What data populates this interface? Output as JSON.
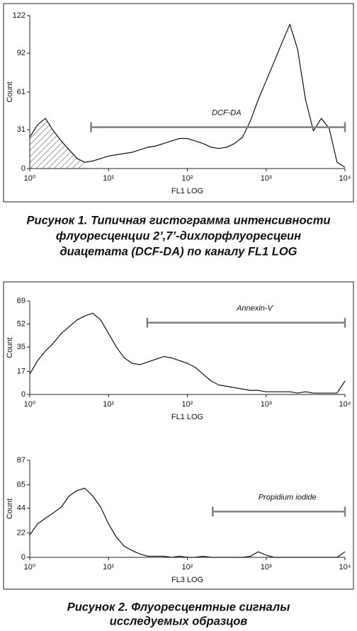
{
  "chart_data": [
    {
      "type": "histogram",
      "y_label": "Count",
      "x_label": "FL1 LOG",
      "log_x": true,
      "hatch_below_gate": true,
      "color": "#111111",
      "xlim": [
        1,
        10000
      ],
      "ylim": [
        0,
        122
      ],
      "xticks": [
        {
          "value": 1,
          "label": "10⁰"
        },
        {
          "value": 10,
          "label": "10¹"
        },
        {
          "value": 100,
          "label": "10²"
        },
        {
          "value": 1000,
          "label": "10³"
        },
        {
          "value": 10000,
          "label": "10⁴"
        }
      ],
      "yticks": [
        0,
        31,
        61,
        92,
        122
      ],
      "gate": {
        "label": "DCF-DA",
        "range": [
          6,
          10000
        ],
        "level": 33,
        "color": "#808080"
      },
      "x": [
        1,
        1.26,
        1.58,
        2,
        2.51,
        3.16,
        3.98,
        5.01,
        6.31,
        7.94,
        10,
        12.6,
        15.8,
        20,
        25.1,
        31.6,
        39.8,
        50.1,
        63.1,
        79.4,
        100,
        126,
        158,
        200,
        251,
        316,
        398,
        501,
        631,
        794,
        1000,
        1260,
        1580,
        2000,
        2510,
        3160,
        3980,
        5010,
        6310,
        7940,
        10000
      ],
      "values": [
        25,
        35,
        40,
        30,
        22,
        15,
        8,
        5,
        6,
        8,
        10,
        11,
        12,
        13,
        15,
        17,
        18,
        20,
        22,
        24,
        24,
        22,
        20,
        17,
        16,
        17,
        20,
        25,
        38,
        55,
        70,
        85,
        100,
        115,
        95,
        55,
        30,
        40,
        32,
        5,
        1
      ]
    },
    {
      "type": "histogram",
      "y_label": "Count",
      "x_label": "FL1 LOG",
      "log_x": true,
      "hatch_below_gate": false,
      "color": "#111111",
      "xlim": [
        1,
        10000
      ],
      "ylim": [
        0,
        69
      ],
      "xticks": [
        {
          "value": 1,
          "label": "10⁰"
        },
        {
          "value": 10,
          "label": "10¹"
        },
        {
          "value": 100,
          "label": "10²"
        },
        {
          "value": 1000,
          "label": "10³"
        },
        {
          "value": 10000,
          "label": "10⁴"
        }
      ],
      "yticks": [
        0,
        17,
        35,
        52,
        69
      ],
      "gate": {
        "label": "Annexin-V",
        "range": [
          31,
          10000
        ],
        "level": 53,
        "color": "#808080"
      },
      "x": [
        1,
        1.26,
        1.58,
        2,
        2.51,
        3.16,
        3.98,
        5.01,
        6.31,
        7.94,
        10,
        12.6,
        15.8,
        20,
        25.1,
        31.6,
        39.8,
        50.1,
        63.1,
        79.4,
        100,
        126,
        158,
        200,
        251,
        316,
        398,
        501,
        631,
        794,
        1000,
        1260,
        1580,
        2000,
        2510,
        3160,
        3980,
        5010,
        6310,
        7940,
        10000
      ],
      "values": [
        15,
        25,
        32,
        38,
        45,
        50,
        55,
        58,
        60,
        55,
        45,
        35,
        27,
        23,
        22,
        24,
        26,
        28,
        27,
        25,
        23,
        20,
        15,
        10,
        7,
        6,
        5,
        4,
        3,
        3,
        2,
        2,
        2,
        2,
        1,
        2,
        1,
        1,
        1,
        1,
        10
      ]
    },
    {
      "type": "histogram",
      "y_label": "Count",
      "x_label": "FL3 LOG",
      "log_x": true,
      "hatch_below_gate": false,
      "color": "#111111",
      "xlim": [
        1,
        10000
      ],
      "ylim": [
        0,
        87
      ],
      "xticks": [
        {
          "value": 1,
          "label": "10⁰"
        },
        {
          "value": 10,
          "label": "10¹"
        },
        {
          "value": 100,
          "label": "10²"
        },
        {
          "value": 1000,
          "label": "10³"
        },
        {
          "value": 10000,
          "label": "10⁴"
        }
      ],
      "yticks": [
        0,
        22,
        44,
        65,
        87
      ],
      "gate": {
        "label": "Propidium iodide",
        "range": [
          210,
          10000
        ],
        "level": 41,
        "color": "#808080"
      },
      "x": [
        1,
        1.26,
        1.58,
        2,
        2.51,
        3.16,
        3.98,
        5.01,
        6.31,
        7.94,
        10,
        12.6,
        15.8,
        20,
        25.1,
        31.6,
        39.8,
        50.1,
        63.1,
        79.4,
        100,
        126,
        158,
        200,
        251,
        316,
        398,
        501,
        631,
        794,
        1000,
        1260,
        1580,
        2000,
        2510,
        3160,
        3980,
        5010,
        6310,
        7940,
        10000
      ],
      "values": [
        20,
        30,
        35,
        40,
        45,
        55,
        60,
        62,
        55,
        45,
        30,
        18,
        10,
        6,
        3,
        1,
        1,
        1,
        0,
        1,
        0,
        0,
        1,
        0,
        0,
        0,
        0,
        0,
        1,
        5,
        2,
        0,
        0,
        0,
        0,
        0,
        0,
        0,
        0,
        0,
        5
      ]
    }
  ],
  "captions": [
    [
      "Рисунок 1. Типичная гистограмма интенсивности",
      "флуоресценции 2’,7’-дихлорфлуоресцеин",
      "диацетата (DCF-DA) по каналу FL1 LOG"
    ],
    [
      "Рисунок 2. Флуоресцентные сигналы",
      "исследуемых образцов"
    ]
  ]
}
